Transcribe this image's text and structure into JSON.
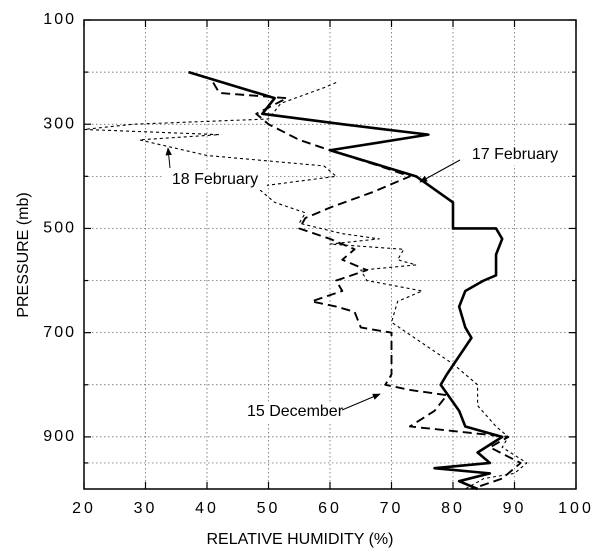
{
  "chart_data": {
    "type": "line",
    "xlabel": "RELATIVE HUMIDITY (%)",
    "ylabel": "PRESSURE (mb)",
    "xlim": [
      20,
      100
    ],
    "xticks": [
      20,
      30,
      40,
      50,
      60,
      70,
      80,
      90,
      100
    ],
    "ylim": [
      1000,
      100
    ],
    "yticks": [
      100,
      300,
      500,
      700,
      900
    ],
    "grid": true,
    "series": [
      {
        "name": "17 February",
        "color": "#000000",
        "dash": "solid",
        "x": [
          37,
          51,
          49,
          62,
          76,
          60,
          74,
          80,
          80,
          87,
          88,
          87,
          87,
          85,
          82,
          81,
          82,
          83,
          79,
          78,
          81,
          82,
          88,
          84,
          86,
          77,
          86,
          81,
          84
        ],
        "values": [
          200,
          250,
          280,
          300,
          320,
          350,
          400,
          450,
          500,
          500,
          520,
          550,
          590,
          600,
          620,
          650,
          690,
          710,
          780,
          800,
          850,
          880,
          900,
          930,
          950,
          960,
          970,
          985,
          1000
        ]
      },
      {
        "name": "18 February",
        "color": "#000000",
        "dash": "dotted",
        "x": [
          61,
          59,
          52,
          50,
          28,
          20,
          42,
          29,
          40,
          59,
          61,
          48,
          51,
          56,
          55,
          62,
          68,
          60,
          72,
          71,
          74,
          65,
          66,
          75,
          71,
          70,
          75,
          80,
          84,
          84,
          87,
          89,
          88,
          92,
          90,
          85,
          82
        ],
        "values": [
          220,
          230,
          260,
          290,
          300,
          310,
          320,
          330,
          360,
          380,
          400,
          420,
          450,
          470,
          490,
          510,
          520,
          530,
          540,
          560,
          570,
          580,
          600,
          620,
          640,
          680,
          720,
          760,
          800,
          840,
          880,
          900,
          920,
          950,
          970,
          980,
          1000
        ]
      },
      {
        "name": "15 December",
        "color": "#000000",
        "dash": "dashed",
        "x": [
          41,
          42,
          53,
          48,
          50,
          55,
          60,
          68,
          73,
          67,
          60,
          56,
          55,
          60,
          64,
          62,
          66,
          61,
          62,
          57,
          61,
          64,
          65,
          70,
          70,
          69,
          73,
          79,
          77,
          73,
          81,
          89,
          86,
          91,
          88,
          83
        ],
        "values": [
          220,
          240,
          250,
          280,
          300,
          330,
          350,
          380,
          400,
          430,
          460,
          480,
          500,
          520,
          540,
          560,
          580,
          600,
          620,
          640,
          650,
          660,
          690,
          700,
          780,
          800,
          810,
          820,
          850,
          880,
          890,
          900,
          920,
          950,
          980,
          1000
        ]
      }
    ]
  }
}
